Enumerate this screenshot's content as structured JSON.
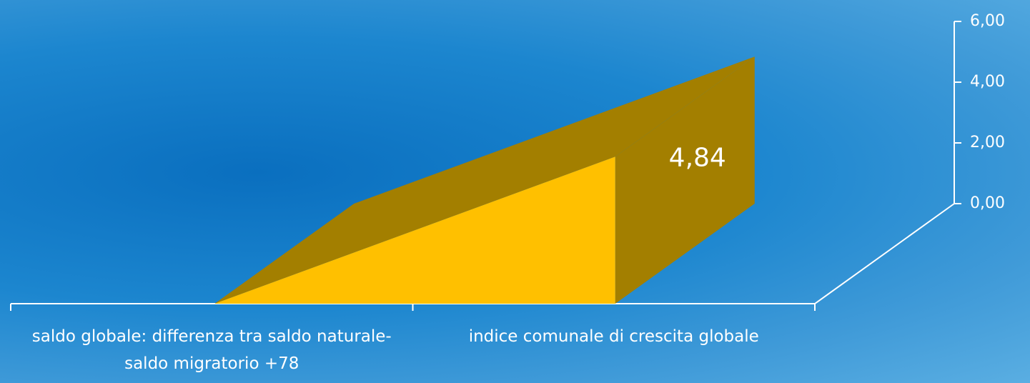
{
  "chart_data": {
    "type": "area3d",
    "categories": [
      "saldo globale: differenza tra saldo naturale-saldo migratorio +78",
      "indice comunale di crescita globale"
    ],
    "values": [
      0,
      4.84
    ],
    "value_labels": [
      null,
      "4,84"
    ],
    "color": "#ffc000",
    "ylim": [
      0,
      6
    ],
    "yticks": [
      {
        "value": 0,
        "label": "0,00"
      },
      {
        "value": 2,
        "label": "2,00"
      },
      {
        "value": 4,
        "label": "4,00"
      },
      {
        "value": 6,
        "label": "6,00"
      }
    ]
  }
}
